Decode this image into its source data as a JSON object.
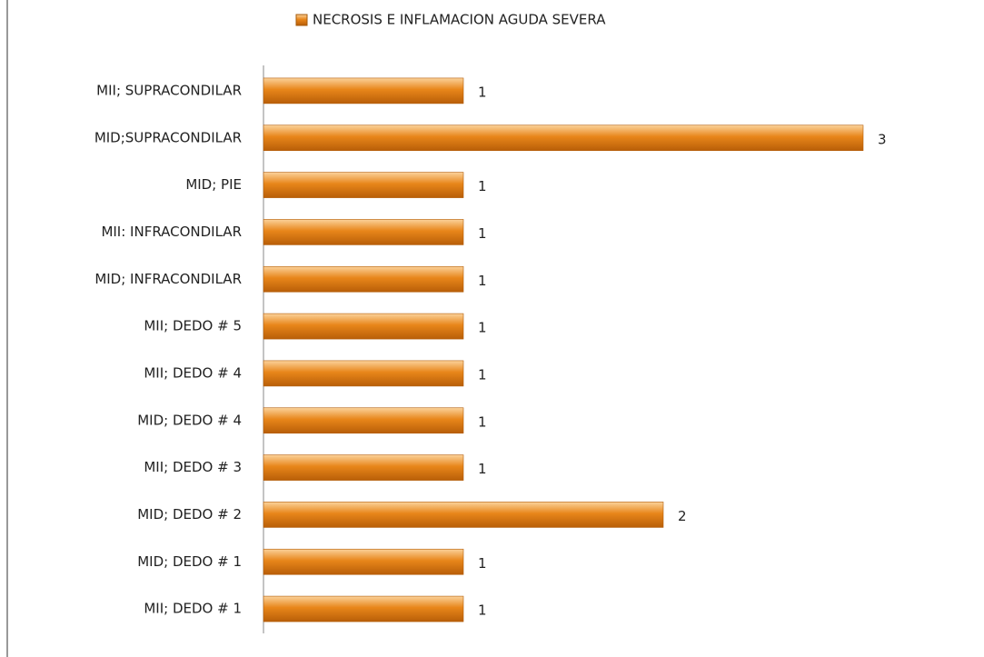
{
  "chart_data": {
    "type": "bar",
    "orientation": "horizontal",
    "series": [
      {
        "name": "NECROSIS E INFLAMACION AGUDA SEVERA",
        "color": "#e8861a",
        "values": [
          1,
          3,
          1,
          1,
          1,
          1,
          1,
          1,
          1,
          2,
          1,
          1
        ]
      }
    ],
    "categories": [
      "MII; SUPRACONDILAR",
      "MID;SUPRACONDILAR",
      "MID; PIE",
      "MII: INFRACONDILAR",
      "MID; INFRACONDILAR",
      "MII; DEDO # 5",
      "MII; DEDO # 4",
      "MID; DEDO # 4",
      "MII; DEDO # 3",
      "MID; DEDO # 2",
      "MID; DEDO # 1",
      "MII; DEDO # 1"
    ],
    "xlim": [
      0,
      3.5
    ],
    "legend": "top"
  }
}
